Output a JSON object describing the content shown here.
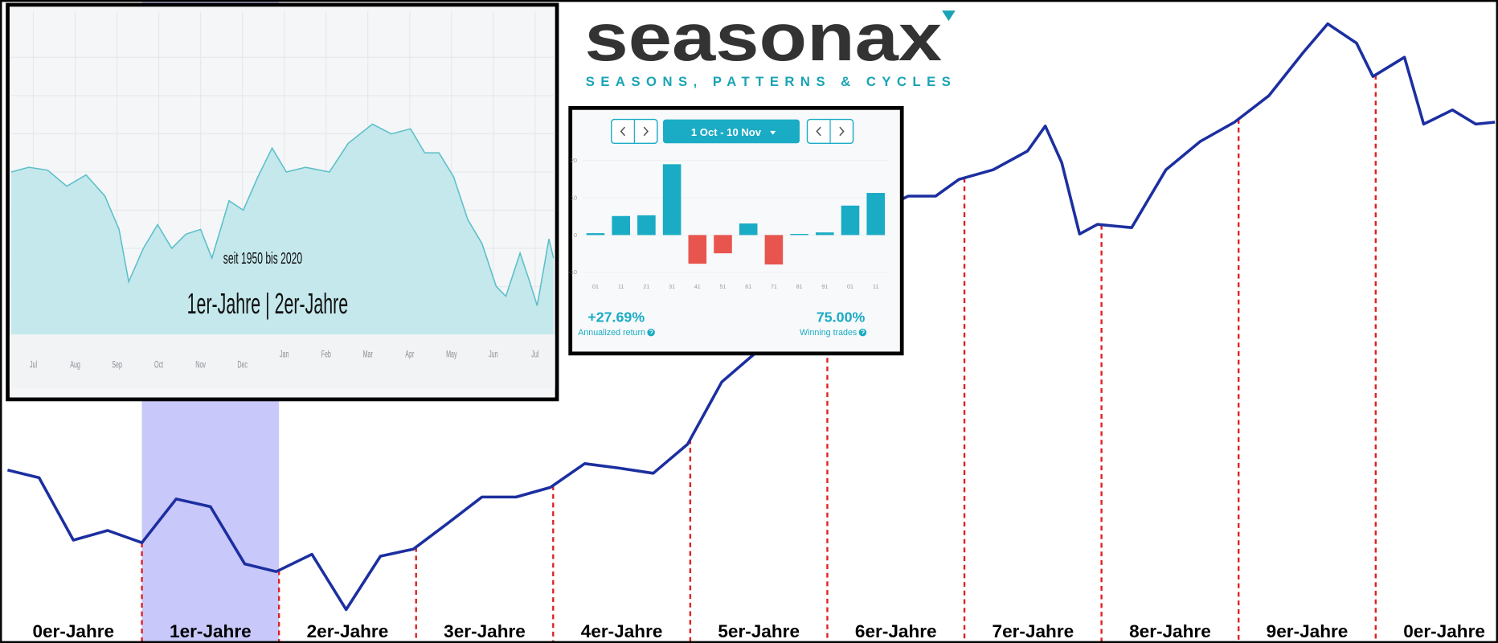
{
  "logo": {
    "name": "seasonax",
    "tagline": "SEASONS, PATTERNS & CYCLES"
  },
  "chart_data": [
    {
      "type": "line",
      "categories": [
        "0er-Jahre",
        "1er-Jahre",
        "2er-Jahre",
        "3er-Jahre",
        "4er-Jahre",
        "5er-Jahre",
        "6er-Jahre",
        "7er-Jahre",
        "8er-Jahre",
        "9er-Jahre",
        "0er-Jahre"
      ],
      "highlight": 1,
      "highlight_color": "#c8c8fa",
      "divider_color": "#e02020",
      "color": "#1c2fa0",
      "xlim": [
        0,
        11
      ],
      "ylim": [
        0,
        100
      ],
      "x": [
        0.02,
        0.25,
        0.5,
        0.75,
        1.0,
        1.25,
        1.5,
        1.75,
        1.98,
        2.24,
        2.49,
        2.74,
        2.98,
        3.23,
        3.48,
        3.73,
        3.98,
        4.23,
        4.48,
        4.73,
        4.98,
        5.23,
        5.47,
        5.57,
        5.97,
        6.38,
        6.59,
        6.79,
        6.96,
        7.21,
        7.46,
        7.59,
        7.71,
        7.84,
        7.97,
        8.22,
        8.47,
        8.72,
        8.97,
        9.22,
        9.47,
        9.65,
        9.86,
        9.98,
        10.21,
        10.35,
        10.56,
        10.73,
        10.87
      ],
      "values": [
        26.9,
        25.7,
        16.0,
        17.5,
        15.6,
        22.4,
        21.2,
        12.3,
        11.1,
        13.8,
        5.2,
        13.5,
        14.6,
        18.6,
        22.7,
        22.7,
        24.2,
        27.9,
        27.2,
        26.4,
        30.9,
        40.6,
        45.0,
        51.0,
        58.4,
        67.3,
        69.5,
        69.5,
        72.1,
        73.6,
        76.5,
        80.4,
        74.7,
        63.6,
        65.1,
        64.6,
        73.6,
        78.0,
        81.0,
        85.1,
        91.8,
        96.3,
        93.3,
        88.1,
        91.1,
        80.7,
        82.9,
        80.7,
        81.0
      ]
    },
    {
      "type": "area",
      "annotations": [
        "seit 1950 bis 2020",
        "1er-Jahre | 2er-Jahre"
      ],
      "categories": [
        "Jul",
        "Aug",
        "Sep",
        "Oct",
        "Nov",
        "Dec",
        "Jan",
        "Feb",
        "Mar",
        "Apr",
        "May",
        "Jun",
        "Jul"
      ],
      "xlim": [
        -0.5,
        12.5
      ],
      "ylim": [
        0,
        100
      ],
      "grid": true,
      "color": "#5bbfc8",
      "x": [
        -0.53,
        -0.11,
        0.34,
        0.8,
        1.26,
        1.71,
        2.05,
        2.28,
        2.63,
        2.97,
        3.31,
        3.65,
        4.0,
        4.27,
        4.68,
        5.02,
        5.37,
        5.71,
        6.05,
        6.51,
        7.08,
        7.53,
        8.11,
        8.56,
        9.02,
        9.36,
        9.7,
        10.05,
        10.39,
        10.73,
        11.07,
        11.3,
        11.64,
        11.87,
        12.05,
        12.33,
        12.44
      ],
      "values": [
        51.5,
        53.0,
        52.1,
        47.0,
        50.6,
        43.9,
        33.3,
        16.7,
        27.3,
        34.8,
        27.3,
        31.8,
        33.3,
        24.2,
        42.4,
        39.4,
        50.0,
        59.1,
        51.5,
        53.0,
        51.5,
        60.6,
        66.7,
        63.6,
        65.2,
        57.6,
        57.6,
        50.0,
        36.4,
        28.8,
        15.2,
        12.1,
        25.8,
        16.7,
        9.1,
        30.3,
        24.2
      ]
    },
    {
      "type": "bar",
      "period": "1 Oct - 10 Nov",
      "categories": [
        "01",
        "11",
        "21",
        "31",
        "41",
        "51",
        "61",
        "71",
        "81",
        "91",
        "01",
        "11"
      ],
      "values": [
        0.5,
        5.1,
        5.3,
        19.0,
        -7.7,
        -4.9,
        3.1,
        -7.9,
        0.3,
        0.7,
        7.9,
        11.3
      ],
      "ylim": [
        -12,
        22
      ],
      "yticks": [
        -10,
        0,
        10,
        20
      ],
      "grid": true,
      "colors": {
        "positive": "#1aabc5",
        "negative": "#e8554e"
      },
      "stats": [
        {
          "value": "+27.69%",
          "label": "Annualized return"
        },
        {
          "value": "75.00%",
          "label": "Winning trades"
        }
      ]
    }
  ]
}
